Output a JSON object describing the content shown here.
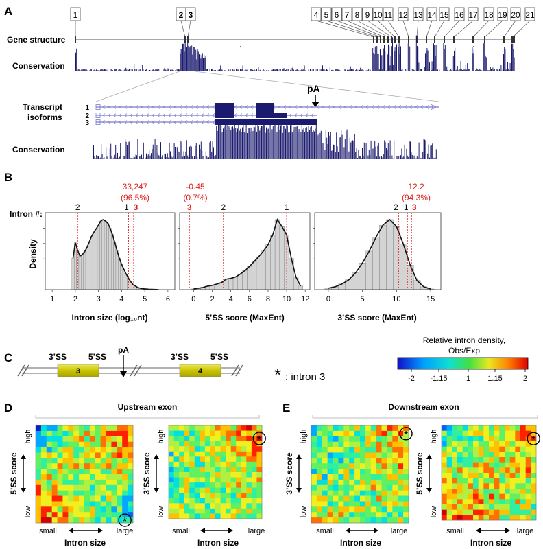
{
  "panels": {
    "A": "A",
    "B": "B",
    "C": "C",
    "D": "D",
    "E": "E"
  },
  "panel_a": {
    "exon_numbers": [
      "1",
      "2",
      "3",
      "4",
      "5",
      "6",
      "7",
      "8",
      "9",
      "10",
      "11",
      "12",
      "13",
      "14",
      "15",
      "16",
      "17",
      "18",
      "19",
      "20",
      "21"
    ],
    "gene_structure_label": "Gene structure",
    "conservation_label": "Conservation",
    "transcript_label_1": "Transcript",
    "transcript_label_2": "isoforms",
    "isoform_ids": [
      "1",
      "2",
      "3"
    ],
    "pa_label": "pA",
    "conservation_label_2": "Conservation"
  },
  "panel_b": {
    "intron_label": "Intron #:",
    "density_label": "Density",
    "ann1": {
      "value": "33,247",
      "pct": "(96.5%)"
    },
    "ann2": {
      "value": "-0.45",
      "pct": "(0.7%)"
    },
    "ann3": {
      "value": "12.2",
      "pct": "(94.3%)"
    },
    "plot1": {
      "markers": [
        "2",
        "1",
        "3"
      ],
      "ticks": [
        "1",
        "2",
        "3",
        "4",
        "5",
        "6"
      ],
      "xlabel": "Intron size (log₁₀nt)"
    },
    "plot2": {
      "markers": [
        "3",
        "2",
        "1"
      ],
      "ticks": [
        "0",
        "2",
        "4",
        "6",
        "8",
        "10",
        "12"
      ],
      "xlabel": "5’SS score (MaxEnt)"
    },
    "plot3": {
      "markers": [
        "2",
        "1",
        "3"
      ],
      "ticks": [
        "0",
        "5",
        "10",
        "15"
      ],
      "xlabel": "3’SS score (MaxEnt)"
    },
    "accent": "#e0201b",
    "bar_color": "#d4d4d4"
  },
  "chart_data": [
    {
      "type": "bar",
      "xlabel": "Intron size (log₁₀nt)",
      "ylabel": "Density",
      "xlim": [
        0.7,
        6.3
      ],
      "x": [
        1.9,
        2.0,
        2.1,
        2.2,
        2.3,
        2.4,
        2.5,
        2.6,
        2.7,
        2.8,
        2.9,
        3.0,
        3.1,
        3.2,
        3.3,
        3.4,
        3.5,
        3.6,
        3.7,
        3.8,
        3.9,
        4.0,
        4.1,
        4.2,
        4.3,
        4.4,
        4.5,
        4.6,
        4.7,
        4.8,
        4.9,
        5.0,
        5.1,
        5.2,
        5.3,
        5.4,
        5.5,
        5.6
      ],
      "values": [
        0.45,
        0.67,
        0.56,
        0.48,
        0.5,
        0.54,
        0.6,
        0.68,
        0.76,
        0.82,
        0.87,
        0.92,
        0.98,
        1.0,
        0.98,
        0.95,
        0.88,
        0.79,
        0.68,
        0.56,
        0.45,
        0.36,
        0.29,
        0.22,
        0.16,
        0.11,
        0.07,
        0.05,
        0.03,
        0.02,
        0.015,
        0.01,
        0.008,
        0.005,
        0.004,
        0.003,
        0.002,
        0.001
      ],
      "markers": [
        {
          "label": "2",
          "x": 2.1
        },
        {
          "label": "1",
          "x": 4.3
        },
        {
          "label": "3",
          "x": 4.52
        }
      ]
    },
    {
      "type": "bar",
      "xlabel": "5’SS score (MaxEnt)",
      "ylabel": "Density",
      "xlim": [
        -1.5,
        12.5
      ],
      "x": [
        0,
        0.5,
        1,
        1.5,
        2,
        2.5,
        3,
        3.5,
        4,
        4.5,
        5,
        5.5,
        6,
        6.5,
        7,
        7.5,
        8,
        8.5,
        9,
        9.5,
        10,
        10.5,
        11,
        11.5
      ],
      "values": [
        0.01,
        0.02,
        0.03,
        0.05,
        0.06,
        0.08,
        0.1,
        0.15,
        0.16,
        0.18,
        0.22,
        0.27,
        0.33,
        0.4,
        0.47,
        0.55,
        0.64,
        0.78,
        1.0,
        0.9,
        0.78,
        0.45,
        0.18,
        0.05
      ],
      "markers": [
        {
          "label": "3",
          "x": -0.45
        },
        {
          "label": "2",
          "x": 3.2
        },
        {
          "label": "1",
          "x": 10.0
        }
      ]
    },
    {
      "type": "bar",
      "xlabel": "3’SS score (MaxEnt)",
      "ylabel": "Density",
      "xlim": [
        -2,
        16.5
      ],
      "x": [
        0,
        1,
        2,
        3,
        4,
        5,
        6,
        7,
        8,
        9,
        10,
        11,
        12,
        13,
        14,
        15
      ],
      "values": [
        0.02,
        0.04,
        0.08,
        0.14,
        0.24,
        0.38,
        0.55,
        0.75,
        0.92,
        1.0,
        0.9,
        0.65,
        0.35,
        0.13,
        0.04,
        0.01
      ],
      "markers": [
        {
          "label": "2",
          "x": 10.3
        },
        {
          "label": "1",
          "x": 11.6
        },
        {
          "label": "3",
          "x": 12.2
        }
      ]
    }
  ],
  "panel_c": {
    "ss3": "3’SS",
    "ss5": "5’SS",
    "exon3": "3",
    "exon4": "4",
    "pa": "pA",
    "ss3b": "3’SS",
    "ss5b": "5’SS",
    "intron_note": ": intron 3",
    "star": "*"
  },
  "colorbar": {
    "title1": "Relative intron density,",
    "title2": "Obs/Exp",
    "ticks": [
      "-2",
      "-1.15",
      "1",
      "1.15",
      "2"
    ]
  },
  "panel_d": {
    "header": "Upstream exon",
    "heat1": {
      "ylabel": "5’SS score",
      "xlabel": "Intron size",
      "high": "high",
      "low": "low",
      "small": "small",
      "large": "large"
    },
    "heat2": {
      "ylabel": "3’SS score",
      "xlabel": "Intron size",
      "high": "high",
      "low": "low",
      "small": "small",
      "large": "large"
    }
  },
  "panel_e": {
    "header": "Downstream exon",
    "heat1": {
      "ylabel": "3’SS score",
      "xlabel": "Intron size",
      "high": "high",
      "low": "low",
      "small": "small",
      "large": "large"
    },
    "heat2": {
      "ylabel": "5’SS score",
      "xlabel": "Intron size",
      "high": "high",
      "low": "low",
      "small": "small",
      "large": "large"
    }
  },
  "colors": {
    "navy": "#1a1a6e",
    "exon_gold": "#d4d000",
    "isoform_line": "#7a7acc"
  }
}
